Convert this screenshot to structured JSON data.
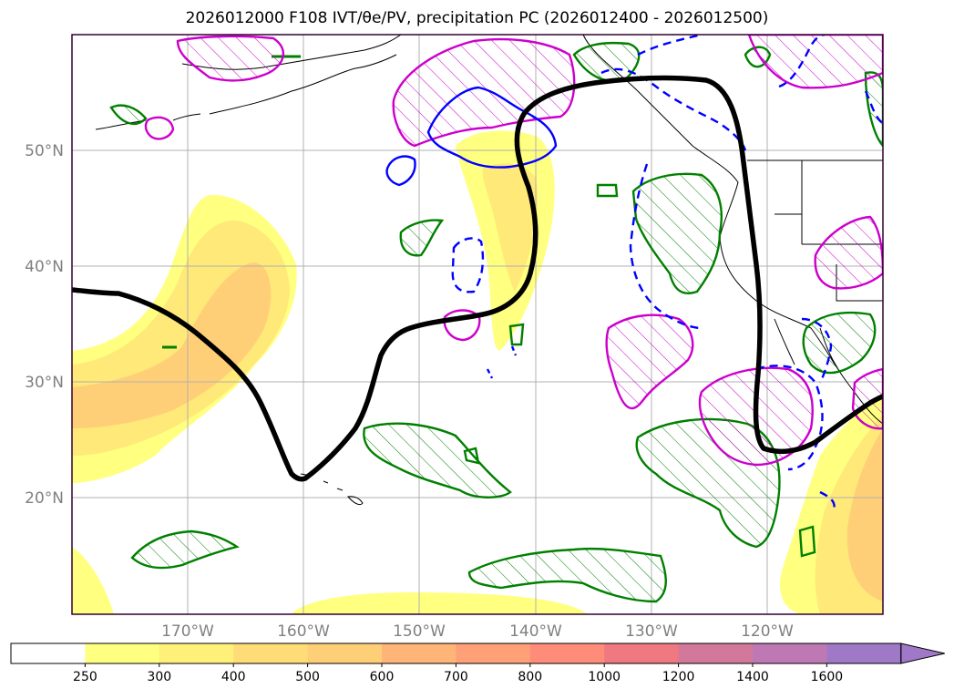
{
  "title": "2026012000 F108 IVT/θe/PV, precipitation PC (2026012400 - 2026012500)",
  "map": {
    "lat_labels": [
      "50°N",
      "40°N",
      "30°N",
      "20°N"
    ],
    "lon_labels": [
      "170°W",
      "160°W",
      "150°W",
      "140°W",
      "130°W",
      "120°W"
    ],
    "grid_lats": [
      50,
      40,
      30,
      20
    ],
    "grid_lons": [
      -170,
      -160,
      -150,
      -140,
      -130,
      -120
    ],
    "extent": {
      "lon_min": -180,
      "lon_max": -110,
      "lat_min": 10,
      "lat_max": 60
    }
  },
  "colorbar": {
    "ticks": [
      "250",
      "300",
      "400",
      "500",
      "600",
      "700",
      "800",
      "1000",
      "1200",
      "1400",
      "1600"
    ],
    "colors": [
      "#ffffff",
      "#ffff80",
      "#fff07a",
      "#ffdc78",
      "#ffcf78",
      "#ffb478",
      "#ffa078",
      "#ff8c78",
      "#f07880",
      "#d2789a",
      "#be78b4",
      "#a078c8"
    ],
    "extend": "max"
  },
  "colors": {
    "ivt_fill_low": "#ffff80",
    "ivt_fill_mid": "#ffe978",
    "ivt_fill_high": "#ffcf78",
    "theta_e_contour": "#000000",
    "pv_positive": "#cc00cc",
    "pv_negative_dashed": "#0000ff",
    "precip_contour": "#008000",
    "grid": "#b0b0b0",
    "frame": "#300030"
  }
}
